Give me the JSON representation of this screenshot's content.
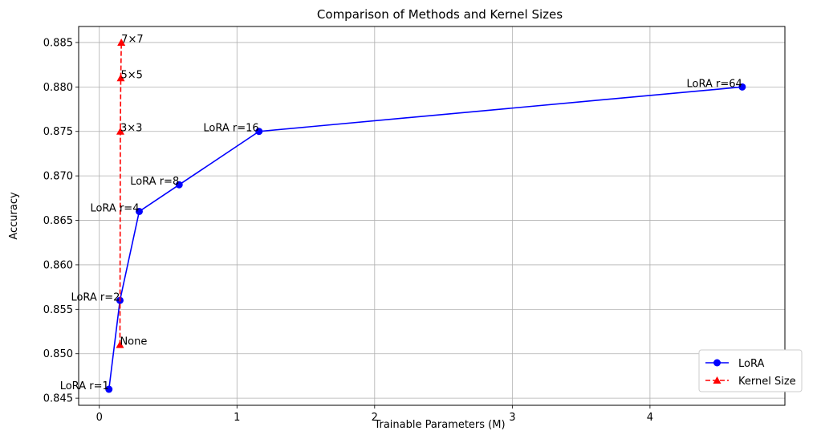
{
  "chart_data": {
    "type": "line",
    "title": "Comparison of Methods and Kernel Sizes",
    "xlabel": "Trainable Parameters (M)",
    "ylabel": "Accuracy",
    "xlim": [
      -0.15,
      4.98
    ],
    "ylim": [
      0.8442,
      0.8868
    ],
    "xticks": [
      0,
      1,
      2,
      3,
      4
    ],
    "xtick_labels": [
      "0",
      "1",
      "2",
      "3",
      "4"
    ],
    "yticks": [
      0.845,
      0.85,
      0.855,
      0.86,
      0.865,
      0.87,
      0.875,
      0.88,
      0.885
    ],
    "ytick_labels": [
      "0.845",
      "0.850",
      "0.855",
      "0.860",
      "0.865",
      "0.870",
      "0.875",
      "0.880",
      "0.885"
    ],
    "grid": true,
    "legend_position": "bottom-right",
    "series": [
      {
        "name": "LoRA",
        "color": "#0000ff",
        "marker": "circle",
        "linestyle": "solid",
        "x": [
          0.07,
          0.15,
          0.29,
          0.58,
          1.16,
          4.67
        ],
        "y": [
          0.846,
          0.856,
          0.866,
          0.869,
          0.875,
          0.88
        ],
        "point_labels": [
          "LoRA r=1",
          "LoRA r=2",
          "LoRA r=4",
          "LoRA r=8",
          "LoRA r=16",
          "LoRA r=64"
        ]
      },
      {
        "name": "Kernel Size",
        "color": "#ff0000",
        "marker": "triangle",
        "linestyle": "dashed",
        "x": [
          0.15,
          0.153,
          0.156,
          0.16
        ],
        "y": [
          0.851,
          0.875,
          0.881,
          0.885
        ],
        "point_labels": [
          "None",
          "3×3",
          "5×5",
          "7×7"
        ]
      }
    ]
  }
}
